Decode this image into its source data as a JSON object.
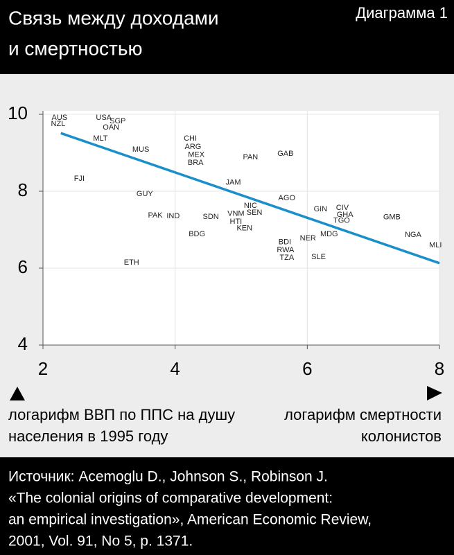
{
  "chart_data": {
    "type": "scatter",
    "title": [
      "Связь между доходами",
      "и смертностью"
    ],
    "subtitle": "Диаграмма 1",
    "labels": [
      "AUS",
      "NZL",
      "USA",
      "SGP",
      "OAN",
      "MLT",
      "MUS",
      "FJI",
      "GUY",
      "PAK",
      "IND",
      "ETH",
      "CHI",
      "ARG",
      "MEX",
      "BRA",
      "SDN",
      "BDG",
      "PAN",
      "JAM",
      "NIC",
      "VNM",
      "SEN",
      "HTI",
      "KEN",
      "GAB",
      "AGO",
      "BDI",
      "RWA",
      "TZA",
      "NER",
      "SLE",
      "GIN",
      "CIV",
      "GHA",
      "TGO",
      "MDG",
      "GMB",
      "NGA",
      "MLI"
    ],
    "x": [
      2.25,
      2.23,
      2.92,
      3.13,
      3.03,
      2.87,
      3.48,
      2.55,
      3.54,
      3.7,
      3.97,
      3.34,
      4.23,
      4.27,
      4.32,
      4.31,
      4.54,
      4.33,
      5.14,
      4.88,
      5.14,
      4.92,
      5.2,
      4.92,
      5.05,
      5.67,
      5.69,
      5.66,
      5.67,
      5.69,
      6.01,
      6.17,
      6.2,
      6.53,
      6.57,
      6.52,
      6.33,
      7.28,
      7.6,
      7.94
    ],
    "y": [
      9.91,
      9.75,
      9.91,
      9.82,
      9.66,
      9.37,
      9.08,
      8.32,
      7.93,
      7.37,
      7.35,
      6.14,
      9.37,
      9.15,
      8.94,
      8.74,
      7.33,
      6.88,
      8.88,
      8.22,
      7.62,
      7.41,
      7.44,
      7.21,
      7.03,
      8.97,
      7.82,
      6.67,
      6.47,
      6.27,
      6.77,
      6.29,
      7.53,
      7.57,
      7.39,
      7.23,
      6.88,
      7.32,
      6.86,
      6.59
    ],
    "trendline": {
      "x": [
        2.27,
        8
      ],
      "y": [
        9.51,
        6.13
      ],
      "color": "#1a8fc9"
    },
    "xlim": [
      2,
      8
    ],
    "ylim": [
      4,
      10
    ],
    "xticks": [
      2,
      4,
      6,
      8
    ],
    "yticks": [
      4,
      6,
      8,
      10
    ],
    "grid": true,
    "y_label": [
      "логарифм ВВП по ППС на душу",
      "населения в 1995 году"
    ],
    "x_label": [
      "логарифм смертности",
      "колонистов"
    ],
    "source": [
      "Источник: Acemoglu D., Johnson S., Robinson J.",
      "«The colonial origins of comparative development:",
      "an empirical investigation», American Economic Review,",
      "2001, Vol. 91, No 5, p. 1371."
    ]
  }
}
